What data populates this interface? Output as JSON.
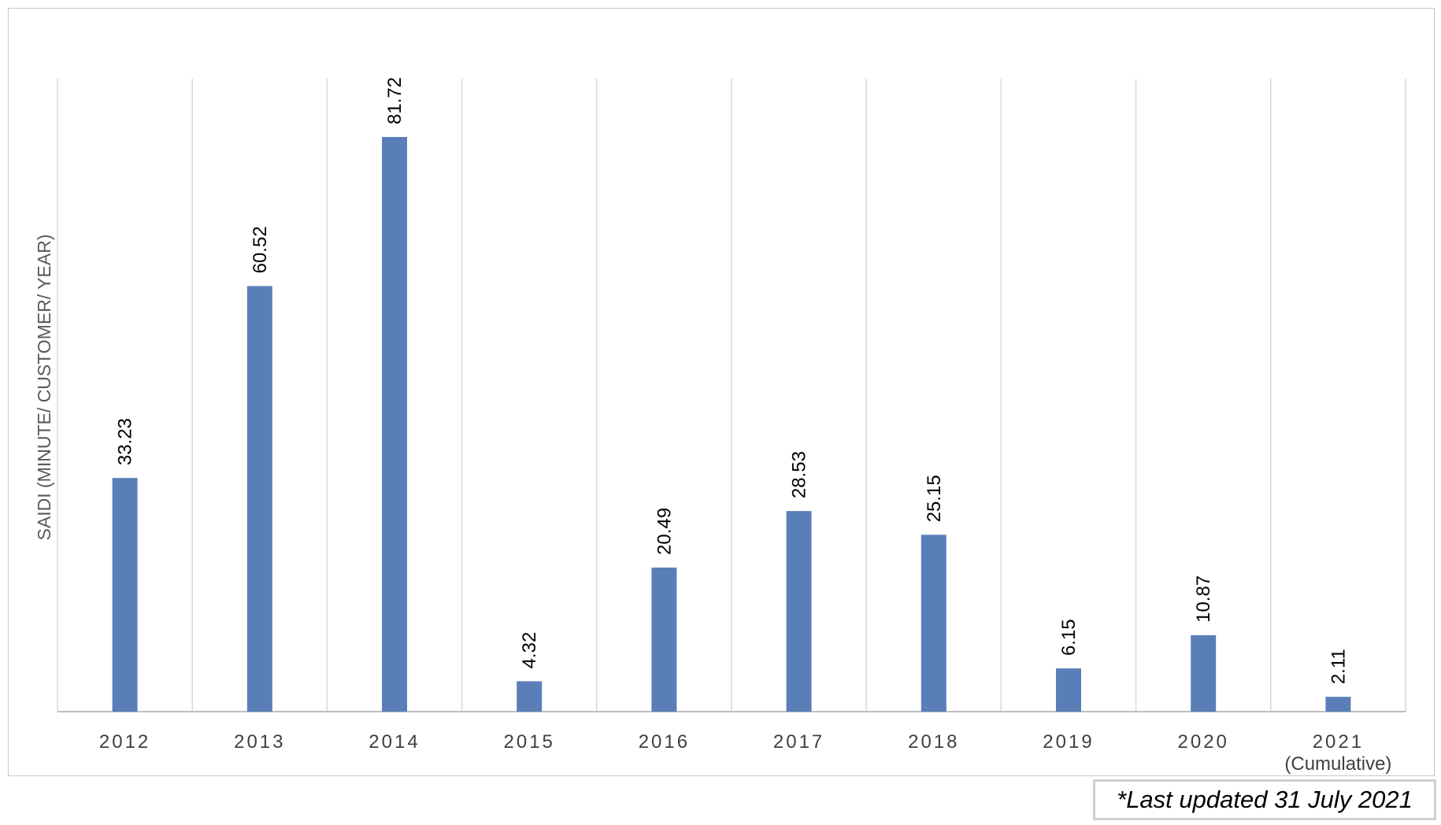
{
  "chart_data": {
    "type": "bar",
    "categories": [
      "2012",
      "2013",
      "2014",
      "2015",
      "2016",
      "2017",
      "2018",
      "2019",
      "2020",
      "2021"
    ],
    "category_sublabels": [
      "",
      "",
      "",
      "",
      "",
      "",
      "",
      "",
      "",
      "(Cumulative)"
    ],
    "values": [
      33.23,
      60.52,
      81.72,
      4.32,
      20.49,
      28.53,
      25.15,
      6.15,
      10.87,
      2.11
    ],
    "data_labels": [
      "33.23",
      "60.52",
      "81.72",
      "4.32",
      "20.49",
      "28.53",
      "25.15",
      "6.15",
      "10.87",
      "2.11"
    ],
    "title": "",
    "xlabel": "",
    "ylabel": "SAIDI (MINUTE/ CUSTOMER/ YEAR)",
    "ylim": [
      0,
      90
    ],
    "grid": "vertical category separators",
    "legend": "none",
    "bar_color": "#5a7fb8",
    "grid_color": "#d9d9d9",
    "axis_color": "#bfbfbf"
  },
  "footnote": "*Last updated 31 July 2021"
}
